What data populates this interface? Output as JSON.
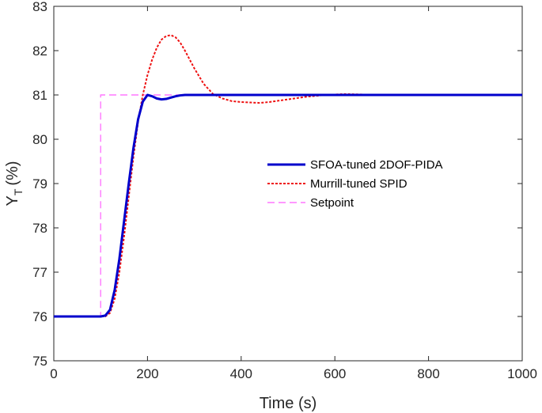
{
  "chart_data": {
    "type": "line",
    "title": "",
    "xlabel": "Time (s)",
    "ylabel_main": "Y",
    "ylabel_sub": "T",
    "ylabel_unit": "(%)",
    "xlim": [
      0,
      1000
    ],
    "ylim": [
      75,
      83
    ],
    "xticks": [
      "0",
      "200",
      "400",
      "600",
      "800",
      "1000"
    ],
    "yticks": [
      "75",
      "76",
      "77",
      "78",
      "79",
      "80",
      "81",
      "82",
      "83"
    ],
    "grid": false,
    "legend_position": "center-right",
    "series": [
      {
        "name": "SFOA-tuned 2DOF-PIDA",
        "color": "#0000cc",
        "style": "solid",
        "x": [
          0,
          100,
          110,
          120,
          130,
          140,
          150,
          160,
          170,
          180,
          190,
          200,
          210,
          220,
          230,
          240,
          250,
          260,
          270,
          280,
          300,
          350,
          400,
          500,
          600,
          700,
          800,
          900,
          1000
        ],
        "y": [
          76,
          76,
          76.02,
          76.15,
          76.6,
          77.3,
          78.15,
          79.0,
          79.8,
          80.45,
          80.85,
          81.0,
          80.97,
          80.92,
          80.9,
          80.91,
          80.94,
          80.97,
          80.99,
          81.0,
          81.0,
          81.0,
          81.0,
          81.0,
          81.0,
          81.0,
          81.0,
          81.0,
          81.0
        ]
      },
      {
        "name": "Murrill-tuned SPID",
        "color": "#ee1111",
        "style": "dotted",
        "x": [
          0,
          100,
          110,
          120,
          130,
          140,
          150,
          160,
          170,
          180,
          190,
          200,
          210,
          220,
          230,
          240,
          250,
          260,
          270,
          280,
          290,
          300,
          320,
          340,
          360,
          380,
          400,
          420,
          440,
          460,
          480,
          500,
          540,
          580,
          620,
          660,
          700,
          800,
          900,
          1000
        ],
        "y": [
          76,
          76,
          76.0,
          76.08,
          76.4,
          77.0,
          77.8,
          78.7,
          79.6,
          80.4,
          81.0,
          81.45,
          81.8,
          82.07,
          82.25,
          82.33,
          82.35,
          82.3,
          82.18,
          82.0,
          81.8,
          81.6,
          81.25,
          81.02,
          80.92,
          80.86,
          80.84,
          80.83,
          80.82,
          80.84,
          80.87,
          80.9,
          80.96,
          81.0,
          81.02,
          81.01,
          81.0,
          81.0,
          81.0,
          81.0
        ]
      },
      {
        "name": "Setpoint",
        "color": "#ff77ff",
        "style": "dashed",
        "x": [
          0,
          100,
          100,
          1000
        ],
        "y": [
          76,
          76,
          81,
          81
        ]
      }
    ]
  }
}
